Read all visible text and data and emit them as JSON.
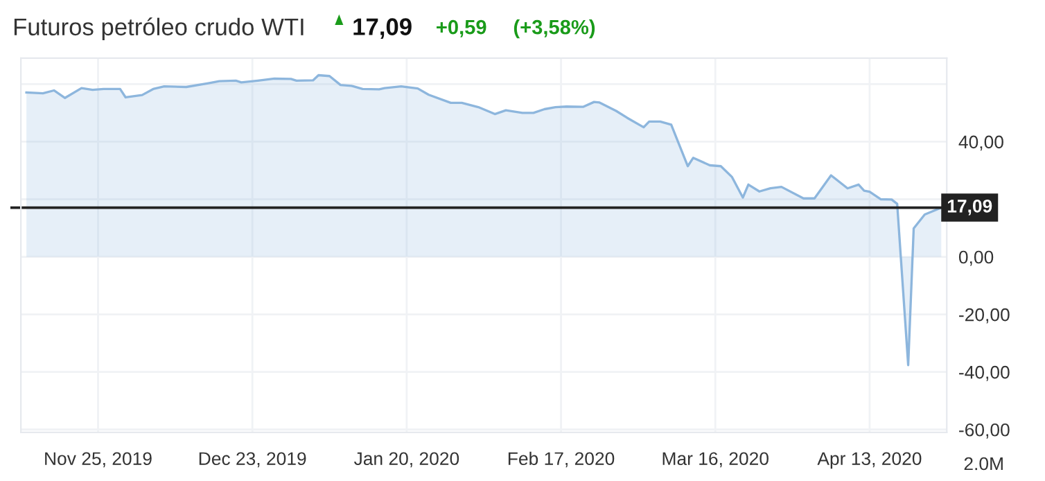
{
  "chart_data": {
    "type": "area",
    "title": "Futuros petróleo crudo WTI",
    "annotations": [
      "17,09",
      "+0,59",
      "(+3,58%)",
      "2.0M"
    ],
    "x": [
      "2019-11-12",
      "2019-11-15",
      "2019-11-17",
      "2019-11-19",
      "2019-11-22",
      "2019-11-24",
      "2019-11-26",
      "2019-11-29",
      "2019-11-30",
      "2019-12-03",
      "2019-12-05",
      "2019-12-07",
      "2019-12-11",
      "2019-12-15",
      "2019-12-17",
      "2019-12-20",
      "2019-12-21",
      "2019-12-24",
      "2019-12-27",
      "2019-12-30",
      "2019-12-31",
      "2020-01-03",
      "2020-01-04",
      "2020-01-06",
      "2020-01-08",
      "2020-01-10",
      "2020-01-12",
      "2020-01-15",
      "2020-01-16",
      "2020-01-19",
      "2020-01-22",
      "2020-01-24",
      "2020-01-28",
      "2020-01-30",
      "2020-02-02",
      "2020-02-05",
      "2020-02-07",
      "2020-02-10",
      "2020-02-12",
      "2020-02-14",
      "2020-02-16",
      "2020-02-18",
      "2020-02-21",
      "2020-02-23",
      "2020-02-24",
      "2020-02-27",
      "2020-02-29",
      "2020-03-03",
      "2020-03-04",
      "2020-03-06",
      "2020-03-08",
      "2020-03-09",
      "2020-03-11",
      "2020-03-12",
      "2020-03-15",
      "2020-03-17",
      "2020-03-19",
      "2020-03-21",
      "2020-03-22",
      "2020-03-24",
      "2020-03-26",
      "2020-03-28",
      "2020-04-01",
      "2020-04-03",
      "2020-04-06",
      "2020-04-09",
      "2020-04-11",
      "2020-04-12",
      "2020-04-13",
      "2020-04-15",
      "2020-04-17",
      "2020-04-18",
      "2020-04-20",
      "2020-04-21",
      "2020-04-23",
      "2020-04-26"
    ],
    "series": [
      {
        "color": "#8db6dd",
        "values": [
          57.1,
          56.8,
          57.8,
          55.2,
          58.6,
          58.0,
          58.3,
          58.3,
          55.4,
          56.2,
          58.3,
          59.2,
          59.0,
          60.3,
          61.0,
          61.2,
          60.6,
          61.2,
          61.9,
          61.8,
          61.2,
          61.3,
          63.1,
          62.8,
          59.7,
          59.4,
          58.3,
          58.2,
          58.6,
          59.2,
          58.5,
          56.3,
          53.5,
          53.5,
          52.0,
          49.6,
          50.9,
          50.0,
          50.0,
          51.3,
          52.0,
          52.2,
          52.1,
          53.8,
          53.6,
          50.7,
          48.3,
          45.0,
          47.0,
          47.0,
          45.9,
          41.1,
          31.5,
          34.4,
          31.8,
          31.5,
          27.8,
          20.6,
          25.1,
          22.7,
          23.8,
          24.3,
          20.3,
          20.3,
          28.3,
          23.8,
          25.1,
          23.0,
          22.6,
          20.0,
          19.9,
          18.4,
          -37.6,
          9.9,
          14.7,
          17.09
        ]
      }
    ],
    "xlim": [
      "2019-11-11",
      "2020-04-27"
    ],
    "xticks": [
      {
        "value": "2019-11-25",
        "label": "Nov 25, 2019"
      },
      {
        "value": "2019-12-23",
        "label": "Dec 23, 2019"
      },
      {
        "value": "2020-01-20",
        "label": "Jan 20, 2020"
      },
      {
        "value": "2020-02-17",
        "label": "Feb 17, 2020"
      },
      {
        "value": "2020-03-16",
        "label": "Mar 16, 2020"
      },
      {
        "value": "2020-04-13",
        "label": "Apr 13, 2020"
      }
    ],
    "ylim": [
      -61,
      69
    ],
    "yticks": [
      {
        "value": -60,
        "label": "-60,00"
      },
      {
        "value": -40,
        "label": "-40,00"
      },
      {
        "value": -20,
        "label": "-20,00"
      },
      {
        "value": 0,
        "label": "0,00"
      },
      {
        "value": 20,
        "label": null
      },
      {
        "value": 40,
        "label": "40,00"
      },
      {
        "value": 60,
        "label": null
      }
    ],
    "ref_lines": [
      {
        "axis": "y",
        "value": 17.09,
        "label": "17,09",
        "color": "#222222"
      }
    ],
    "grid": true
  }
}
